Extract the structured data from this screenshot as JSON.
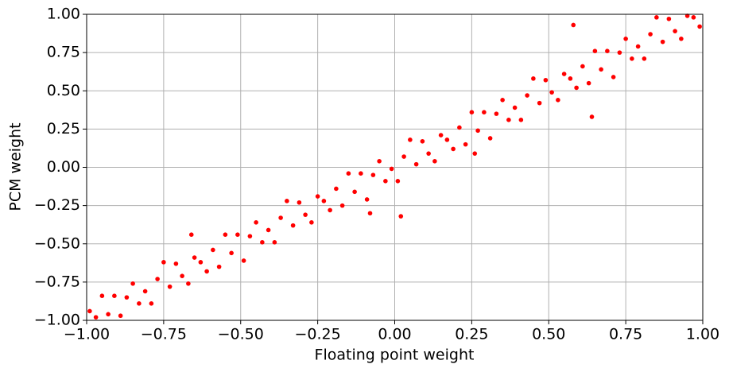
{
  "chart_data": {
    "type": "scatter",
    "xlabel": "Floating point weight",
    "ylabel": "PCM weight",
    "color": "#ff0000",
    "grid": true,
    "x": [
      -0.99,
      -0.97,
      -0.95,
      -0.93,
      -0.91,
      -0.89,
      -0.87,
      -0.85,
      -0.83,
      -0.81,
      -0.79,
      -0.77,
      -0.75,
      -0.73,
      -0.71,
      -0.69,
      -0.67,
      -0.65,
      -0.63,
      -0.61,
      -0.59,
      -0.57,
      -0.55,
      -0.53,
      -0.51,
      -0.49,
      -0.47,
      -0.45,
      -0.43,
      -0.41,
      -0.39,
      -0.37,
      -0.35,
      -0.33,
      -0.31,
      -0.29,
      -0.27,
      -0.25,
      -0.23,
      -0.21,
      -0.19,
      -0.17,
      -0.15,
      -0.13,
      -0.11,
      -0.09,
      -0.07,
      -0.05,
      -0.03,
      -0.01,
      0.01,
      0.03,
      0.05,
      0.07,
      0.09,
      0.11,
      0.13,
      0.15,
      0.17,
      0.19,
      0.21,
      0.23,
      0.25,
      0.27,
      0.29,
      0.31,
      0.33,
      0.35,
      0.37,
      0.39,
      0.41,
      0.43,
      0.45,
      0.47,
      0.49,
      0.51,
      0.53,
      0.55,
      0.57,
      0.59,
      0.61,
      0.63,
      0.65,
      0.67,
      0.69,
      0.71,
      0.73,
      0.75,
      0.77,
      0.79,
      0.81,
      0.83,
      0.85,
      0.87,
      0.89,
      0.91,
      0.93,
      0.95,
      0.97,
      0.99,
      0.02,
      0.26,
      0.64,
      0.58,
      -0.66,
      -0.08
    ],
    "y": [
      -0.94,
      -0.98,
      -0.84,
      -0.96,
      -0.84,
      -0.97,
      -0.85,
      -0.76,
      -0.89,
      -0.81,
      -0.89,
      -0.73,
      -0.62,
      -0.78,
      -0.63,
      -0.71,
      -0.76,
      -0.59,
      -0.62,
      -0.68,
      -0.54,
      -0.65,
      -0.44,
      -0.56,
      -0.44,
      -0.61,
      -0.45,
      -0.36,
      -0.49,
      -0.41,
      -0.49,
      -0.33,
      -0.22,
      -0.38,
      -0.23,
      -0.31,
      -0.36,
      -0.19,
      -0.22,
      -0.28,
      -0.14,
      -0.25,
      -0.04,
      -0.16,
      -0.04,
      -0.21,
      -0.05,
      0.04,
      -0.09,
      -0.01,
      -0.09,
      0.07,
      0.18,
      0.02,
      0.17,
      0.09,
      0.04,
      0.21,
      0.18,
      0.12,
      0.26,
      0.15,
      0.36,
      0.24,
      0.36,
      0.19,
      0.35,
      0.44,
      0.31,
      0.39,
      0.31,
      0.47,
      0.58,
      0.42,
      0.57,
      0.49,
      0.44,
      0.61,
      0.58,
      0.52,
      0.66,
      0.55,
      0.76,
      0.64,
      0.76,
      0.59,
      0.75,
      0.84,
      0.71,
      0.79,
      0.71,
      0.87,
      0.98,
      0.82,
      0.97,
      0.89,
      0.84,
      0.99,
      0.98,
      0.92,
      -0.32,
      0.09,
      0.33,
      0.93,
      -0.44,
      -0.3
    ],
    "xlim": [
      -1,
      1
    ],
    "ylim": [
      -1,
      1
    ],
    "xticks": [
      {
        "value": -1,
        "label": "−1.00"
      },
      {
        "value": -0.75,
        "label": "−0.75"
      },
      {
        "value": -0.5,
        "label": "−0.50"
      },
      {
        "value": -0.25,
        "label": "−0.25"
      },
      {
        "value": 0,
        "label": "0.00"
      },
      {
        "value": 0.25,
        "label": "0.25"
      },
      {
        "value": 0.5,
        "label": "0.50"
      },
      {
        "value": 0.75,
        "label": "0.75"
      },
      {
        "value": 1,
        "label": "1.00"
      }
    ],
    "yticks": [
      {
        "value": -1,
        "label": "−1.00"
      },
      {
        "value": -0.75,
        "label": "−0.75"
      },
      {
        "value": -0.5,
        "label": "−0.50"
      },
      {
        "value": -0.25,
        "label": "−0.25"
      },
      {
        "value": 0,
        "label": "0.00"
      },
      {
        "value": 0.25,
        "label": "0.25"
      },
      {
        "value": 0.5,
        "label": "0.50"
      },
      {
        "value": 0.75,
        "label": "0.75"
      },
      {
        "value": 1,
        "label": "1.00"
      }
    ]
  }
}
